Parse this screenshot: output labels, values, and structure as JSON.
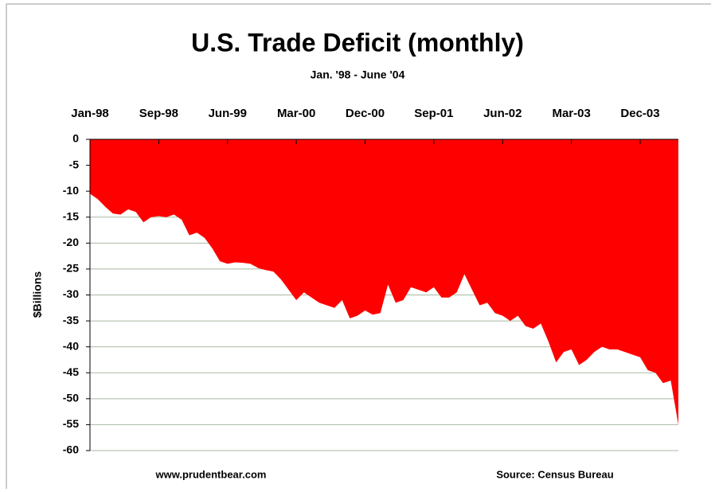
{
  "chart_data": {
    "type": "area",
    "title": "U.S. Trade Deficit (monthly)",
    "subtitle": "Jan. '98 - June '04",
    "y_label": "$Billions",
    "footer_left": "www.prudentbear.com",
    "footer_right": "Source: Census Bureau",
    "color": "#ff0000",
    "grid": true,
    "categories": [
      "Jan-98",
      null,
      null,
      null,
      null,
      null,
      null,
      null,
      null,
      "Sep-98",
      null,
      null,
      null,
      null,
      null,
      null,
      null,
      null,
      "Jun-99",
      null,
      null,
      null,
      null,
      null,
      null,
      null,
      null,
      "Mar-00",
      null,
      null,
      null,
      null,
      null,
      null,
      null,
      null,
      "Dec-00",
      null,
      null,
      null,
      null,
      null,
      null,
      null,
      null,
      "Sep-01",
      null,
      null,
      null,
      null,
      null,
      null,
      null,
      null,
      "Jun-02",
      null,
      null,
      null,
      null,
      null,
      null,
      null,
      null,
      "Mar-03",
      null,
      null,
      null,
      null,
      null,
      null,
      null,
      null,
      "Dec-03",
      null,
      null,
      null,
      null,
      null
    ],
    "values": [
      -10.5,
      -11.5,
      -13,
      -14.3,
      -14.5,
      -13.5,
      -14,
      -16,
      -15,
      -14.8,
      -15,
      -14.5,
      -15.5,
      -18.5,
      -18,
      -19,
      -21,
      -23.5,
      -24,
      -23.7,
      -23.8,
      -24,
      -24.8,
      -25.2,
      -25.5,
      -27,
      -29,
      -31,
      -29.5,
      -30.5,
      -31.5,
      -32,
      -32.5,
      -31,
      -34.5,
      -34,
      -33,
      -33.8,
      -33.5,
      -28,
      -31.5,
      -31,
      -28.5,
      -29,
      -29.5,
      -28.5,
      -30.5,
      -30.5,
      -29.5,
      -26,
      -29,
      -32,
      -31.5,
      -33.5,
      -34,
      -35,
      -34,
      -36,
      -36.5,
      -35.5,
      -39,
      -43,
      -41,
      -40.5,
      -43.5,
      -42.5,
      -41,
      -40,
      -40.5,
      -40.5,
      -41,
      -41.5,
      -42,
      -44.5,
      -45,
      -47,
      -46.5,
      -55
    ],
    "ylim": [
      -60,
      0
    ],
    "yticks": [
      0,
      -5,
      -10,
      -15,
      -20,
      -25,
      -30,
      -35,
      -40,
      -45,
      -50,
      -55,
      -60
    ]
  }
}
